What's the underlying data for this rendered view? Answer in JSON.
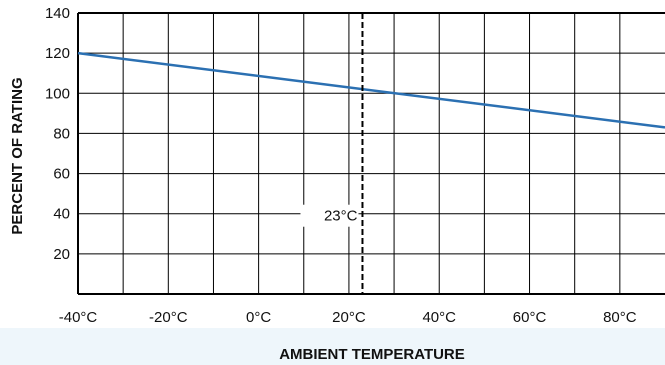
{
  "chart_data": {
    "type": "line",
    "title": "",
    "xlabel": "AMBIENT TEMPERATURE",
    "ylabel": "PERCENT OF RATING",
    "xlim": [
      -40,
      90
    ],
    "ylim": [
      0,
      140
    ],
    "x_tick_values": [
      -40,
      -20,
      0,
      20,
      40,
      60,
      80
    ],
    "x_tick_labels": [
      "-40°C",
      "-20°C",
      "0°C",
      "20°C",
      "40°C",
      "60°C",
      "80°C"
    ],
    "y_tick_values": [
      20,
      40,
      60,
      80,
      100,
      120,
      140
    ],
    "y_tick_labels": [
      "20",
      "40",
      "60",
      "80",
      "100",
      "120",
      "140"
    ],
    "grid": true,
    "x_grid_step": 10,
    "y_grid_step": 20,
    "series": [
      {
        "x": [
          -40,
          90
        ],
        "y": [
          120,
          83
        ]
      }
    ],
    "reference_line": {
      "x": 23,
      "label": "23°C",
      "label_y": 39
    },
    "colors": {
      "series": "#2b70b2",
      "grid": "#000000",
      "reference": "#000000",
      "band": "#eef6fb"
    }
  }
}
